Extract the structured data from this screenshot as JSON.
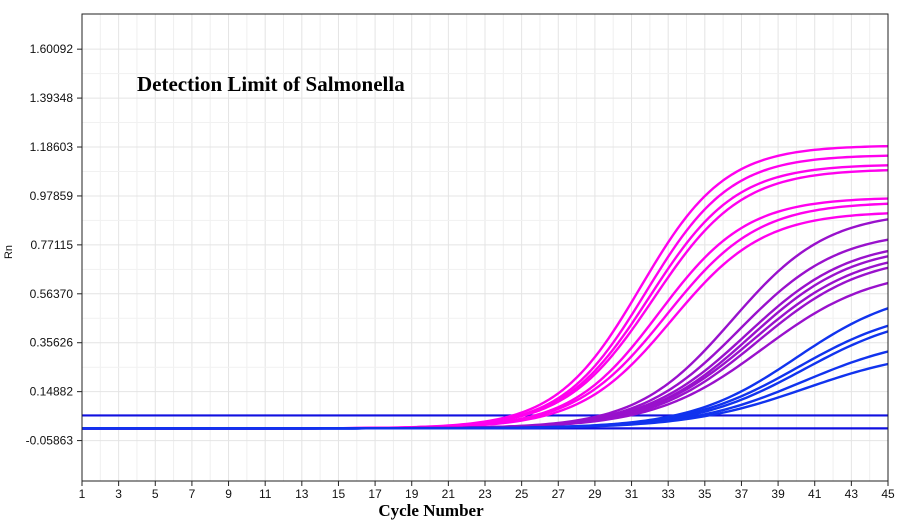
{
  "chart_data": {
    "type": "line",
    "title": "Detection Limit of Salmonella",
    "xlabel": "Cycle Number",
    "ylabel": "Rn",
    "xlim": [
      1,
      45
    ],
    "ylim": [
      -0.23,
      1.75
    ],
    "x_ticks": [
      "1",
      "3",
      "5",
      "7",
      "9",
      "11",
      "13",
      "15",
      "17",
      "19",
      "21",
      "23",
      "25",
      "27",
      "29",
      "31",
      "33",
      "35",
      "37",
      "39",
      "41",
      "43",
      "45"
    ],
    "y_ticks": [
      "1.60092",
      "1.39348",
      "1.18603",
      "0.97859",
      "0.77115",
      "0.56370",
      "0.35626",
      "0.14882",
      "-0.05863"
    ],
    "y_tick_values": [
      1.60092,
      1.39348,
      1.18603,
      0.97859,
      0.77115,
      0.5637,
      0.35626,
      0.14882,
      -0.05863
    ],
    "grid": true,
    "threshold_lines": [
      {
        "y": 0.048,
        "color": "#1010e0"
      },
      {
        "y": -0.007,
        "color": "#1010e0"
      }
    ],
    "groups": [
      {
        "color": "#ff00ee",
        "baseline": -0.007,
        "curves": [
          {
            "plateau": 1.2,
            "midpoint": 31.5,
            "slope": 2.3
          },
          {
            "plateau": 1.16,
            "midpoint": 31.8,
            "slope": 2.3
          },
          {
            "plateau": 1.12,
            "midpoint": 32.0,
            "slope": 2.35
          },
          {
            "plateau": 1.1,
            "midpoint": 32.2,
            "slope": 2.4
          },
          {
            "plateau": 0.98,
            "midpoint": 32.5,
            "slope": 2.4
          },
          {
            "plateau": 0.96,
            "midpoint": 32.9,
            "slope": 2.5
          },
          {
            "plateau": 0.92,
            "midpoint": 33.2,
            "slope": 2.5
          }
        ]
      },
      {
        "color": "#9911cc",
        "baseline": -0.007,
        "curves": [
          {
            "plateau": 0.92,
            "midpoint": 36.5,
            "slope": 2.6
          },
          {
            "plateau": 0.84,
            "midpoint": 36.9,
            "slope": 2.7
          },
          {
            "plateau": 0.8,
            "midpoint": 37.3,
            "slope": 2.8
          },
          {
            "plateau": 0.78,
            "midpoint": 37.5,
            "slope": 2.8
          },
          {
            "plateau": 0.76,
            "midpoint": 37.7,
            "slope": 2.9
          },
          {
            "plateau": 0.74,
            "midpoint": 37.9,
            "slope": 2.9
          },
          {
            "plateau": 0.68,
            "midpoint": 38.2,
            "slope": 3.0
          }
        ]
      },
      {
        "color": "#1133ee",
        "baseline": -0.007,
        "curves": [
          {
            "plateau": 0.6,
            "midpoint": 40.0,
            "slope": 2.9
          },
          {
            "plateau": 0.52,
            "midpoint": 40.1,
            "slope": 3.0
          },
          {
            "plateau": 0.5,
            "midpoint": 40.4,
            "slope": 3.0
          },
          {
            "plateau": 0.4,
            "midpoint": 40.4,
            "slope": 3.1
          },
          {
            "plateau": 0.34,
            "midpoint": 40.5,
            "slope": 3.2
          }
        ]
      }
    ]
  }
}
